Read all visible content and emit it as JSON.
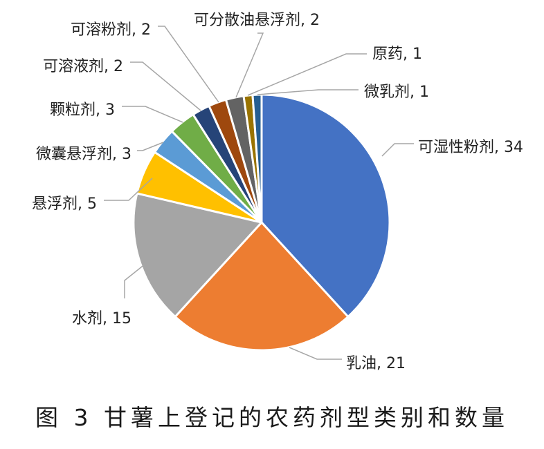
{
  "caption": "图 3 甘薯上登记的农药剂型类别和数量",
  "chart_data": {
    "type": "pie",
    "title": "",
    "slices": [
      {
        "label": "可湿性粉剂",
        "value": 34,
        "color": "#4472C4",
        "text": "可湿性粉剂, 34"
      },
      {
        "label": "乳油",
        "value": 21,
        "color": "#ED7D31",
        "text": "乳油, 21"
      },
      {
        "label": "水剂",
        "value": 15,
        "color": "#A5A5A5",
        "text": "水剂, 15"
      },
      {
        "label": "悬浮剂",
        "value": 5,
        "color": "#FFC000",
        "text": "悬浮剂, 5"
      },
      {
        "label": "微囊悬浮剂",
        "value": 3,
        "color": "#5B9BD5",
        "text": "微囊悬浮剂, 3"
      },
      {
        "label": "颗粒剂",
        "value": 3,
        "color": "#70AD47",
        "text": "颗粒剂, 3"
      },
      {
        "label": "可溶液剂",
        "value": 2,
        "color": "#264478",
        "text": "可溶液剂, 2"
      },
      {
        "label": "可溶粉剂",
        "value": 2,
        "color": "#9E480E",
        "text": "可溶粉剂, 2"
      },
      {
        "label": "可分散油悬浮剂",
        "value": 2,
        "color": "#636363",
        "text": "可分散油悬浮剂, 2"
      },
      {
        "label": "原药",
        "value": 1,
        "color": "#997300",
        "text": "原药, 1"
      },
      {
        "label": "微乳剂",
        "value": 1,
        "color": "#255E91",
        "text": "微乳剂, 1"
      }
    ]
  }
}
